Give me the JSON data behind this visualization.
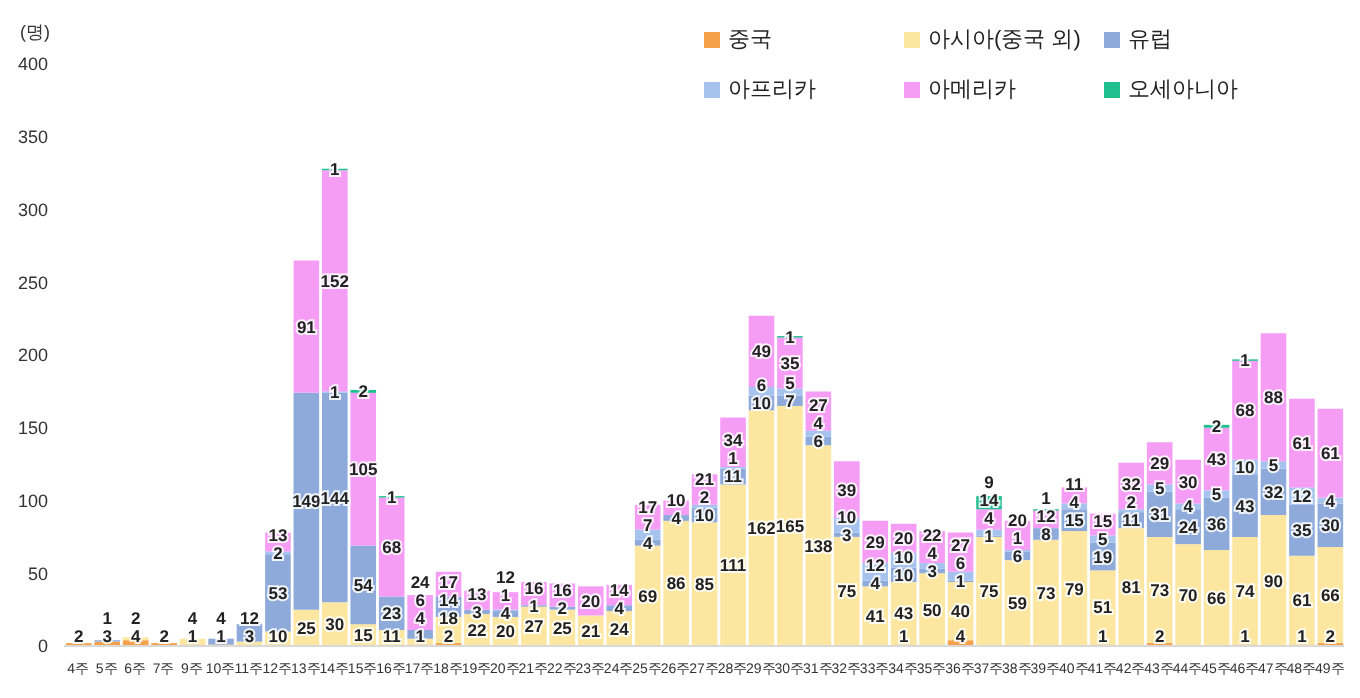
{
  "chart_data": {
    "type": "bar",
    "stacked": true,
    "ylabel": "(명)",
    "ylim": [
      0,
      400
    ],
    "yticks": [
      0,
      50,
      100,
      150,
      200,
      250,
      300,
      350,
      400
    ],
    "grid": false,
    "legend": "top right",
    "data_labels": true,
    "categories": [
      "4주",
      "5주",
      "6주",
      "7주",
      "9주",
      "10주",
      "11주",
      "12주",
      "13주",
      "14주",
      "15주",
      "16주",
      "17주",
      "18주",
      "19주",
      "20주",
      "21주",
      "22주",
      "23주",
      "24주",
      "25주",
      "26주",
      "27주",
      "28주",
      "29주",
      "30주",
      "31주",
      "32주",
      "33주",
      "34주",
      "35주",
      "36주",
      "37주",
      "38주",
      "39주",
      "40주",
      "41주",
      "42주",
      "43주",
      "44주",
      "45주",
      "46주",
      "47주",
      "48주",
      "49주"
    ],
    "series": [
      {
        "name": "중국",
        "color": "#f4a14a",
        "values": [
          2,
          3,
          4,
          2,
          1,
          1,
          null,
          null,
          null,
          null,
          null,
          null,
          1,
          2,
          null,
          null,
          null,
          null,
          null,
          null,
          null,
          null,
          null,
          null,
          null,
          null,
          null,
          null,
          null,
          1,
          null,
          4,
          null,
          null,
          null,
          null,
          1,
          null,
          2,
          null,
          null,
          1,
          null,
          1,
          2
        ]
      },
      {
        "name": "아시아(중국 외)",
        "color": "#fde6a0",
        "values": [
          null,
          null,
          2,
          null,
          4,
          null,
          3,
          10,
          25,
          30,
          15,
          11,
          4,
          18,
          22,
          20,
          27,
          25,
          21,
          24,
          69,
          86,
          85,
          111,
          162,
          165,
          138,
          75,
          41,
          43,
          50,
          40,
          75,
          59,
          73,
          79,
          51,
          81,
          73,
          70,
          66,
          74,
          90,
          61,
          66
        ]
      },
      {
        "name": "유럽",
        "color": "#8eaadb",
        "values": [
          null,
          1,
          null,
          null,
          null,
          4,
          12,
          53,
          149,
          144,
          54,
          23,
          6,
          14,
          3,
          4,
          1,
          2,
          null,
          4,
          4,
          4,
          10,
          11,
          10,
          7,
          6,
          3,
          4,
          10,
          3,
          1,
          1,
          6,
          8,
          15,
          19,
          11,
          31,
          24,
          36,
          43,
          32,
          35,
          30
        ]
      },
      {
        "name": "아프리카",
        "color": "#a6c3ee",
        "values": [
          null,
          null,
          null,
          null,
          null,
          null,
          null,
          2,
          null,
          1,
          null,
          null,
          null,
          null,
          null,
          1,
          null,
          null,
          null,
          null,
          7,
          null,
          2,
          1,
          6,
          5,
          4,
          10,
          12,
          10,
          4,
          6,
          4,
          1,
          null,
          4,
          5,
          2,
          5,
          4,
          5,
          10,
          5,
          12,
          4
        ]
      },
      {
        "name": "아메리카",
        "color": "#f59cf5",
        "values": [
          null,
          null,
          null,
          null,
          null,
          null,
          null,
          13,
          91,
          152,
          105,
          68,
          24,
          17,
          13,
          12,
          16,
          16,
          20,
          14,
          17,
          10,
          21,
          34,
          49,
          35,
          27,
          39,
          29,
          20,
          22,
          27,
          14,
          20,
          12,
          11,
          15,
          32,
          29,
          30,
          43,
          68,
          88,
          61,
          61
        ]
      },
      {
        "name": "오세아니아",
        "color": "#1fbf8f",
        "values": [
          null,
          null,
          null,
          null,
          null,
          null,
          null,
          null,
          null,
          1,
          2,
          1,
          null,
          null,
          null,
          null,
          null,
          null,
          null,
          null,
          null,
          null,
          null,
          null,
          null,
          1,
          null,
          null,
          null,
          null,
          null,
          null,
          9,
          null,
          1,
          null,
          null,
          null,
          null,
          null,
          2,
          1,
          null,
          null,
          null
        ]
      }
    ]
  }
}
